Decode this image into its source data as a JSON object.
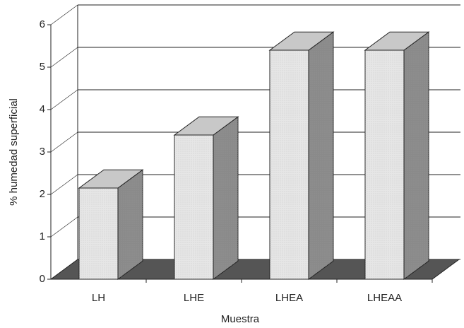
{
  "chart_data": {
    "type": "bar3d",
    "x_label": "Muestra",
    "y_label": "% humedad superficial",
    "categories": [
      "LH",
      "LHE",
      "LHEA",
      "LHEAA"
    ],
    "values": [
      2.15,
      3.4,
      5.4,
      5.4
    ],
    "ylim": [
      0,
      6
    ],
    "yticks": [
      0,
      1,
      2,
      3,
      4,
      5,
      6
    ],
    "grid": true,
    "color": "#e6e6e6"
  }
}
